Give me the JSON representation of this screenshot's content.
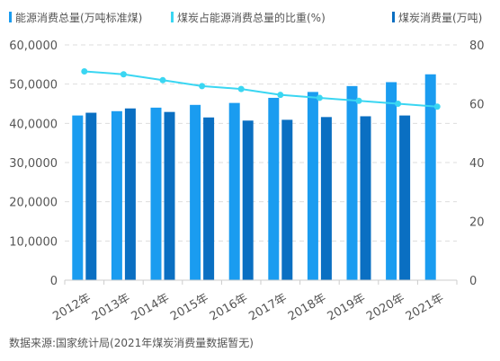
{
  "colors": {
    "total_energy": "#1a9cf0",
    "coal_ratio": "#3ad6f2",
    "coal_consumption": "#0a6fc2",
    "grid": "#dddddd",
    "axis_text": "#555555"
  },
  "legend": {
    "total_energy": "能源消费总量(万吨标准煤)",
    "coal_ratio": "煤炭占能源消费总量的比重(%)",
    "coal_consumption": "煤炭消费量(万吨)"
  },
  "source_note": "数据来源:国家统计局(2021年煤炭消费量数据暂无)",
  "chart_data": {
    "type": "bar",
    "categories": [
      "2012年",
      "2013年",
      "2014年",
      "2015年",
      "2016年",
      "2017年",
      "2018年",
      "2019年",
      "2020年",
      "2021年"
    ],
    "series": [
      {
        "name": "能源消费总量(万吨标准煤)",
        "type": "bar",
        "axis": "left",
        "values": [
          42000,
          43100,
          44000,
          44700,
          45200,
          46500,
          48000,
          49500,
          50500,
          52500
        ]
      },
      {
        "name": "煤炭消费量(万吨)",
        "type": "bar",
        "axis": "left",
        "values": [
          42700,
          43800,
          42900,
          41500,
          40700,
          40900,
          41600,
          41800,
          42000,
          null
        ]
      },
      {
        "name": "煤炭占能源消费总量的比重(%)",
        "type": "line",
        "axis": "right",
        "values": [
          71,
          70,
          68,
          66,
          65,
          63,
          62,
          61,
          60,
          59
        ]
      }
    ],
    "left_axis": {
      "ticks": [
        "0",
        "10,0000",
        "20,0000",
        "30,0000",
        "40,0000",
        "50,0000",
        "60,0000"
      ],
      "ylim": [
        0,
        60000
      ]
    },
    "right_axis": {
      "ticks": [
        "0",
        "20",
        "40",
        "60",
        "80"
      ],
      "ylim": [
        0,
        80
      ]
    },
    "grid": true,
    "legend_position": "top"
  }
}
